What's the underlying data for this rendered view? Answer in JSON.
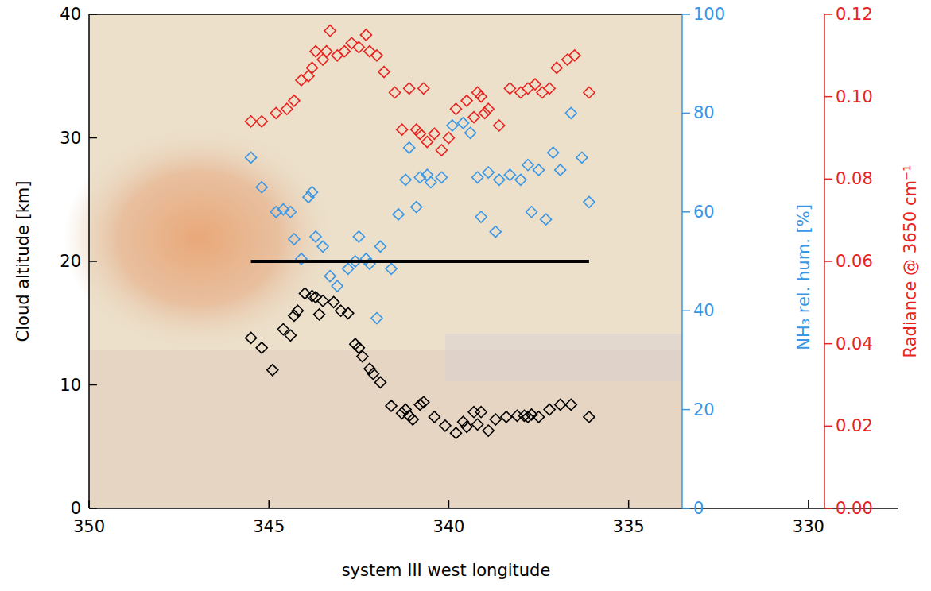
{
  "chart_data": {
    "type": "scatter",
    "xlabel": "system III west longitude",
    "ylabel": "Cloud altitude [km]",
    "y2label": "NH₃ rel. hum. [%]",
    "y3label": "Radiance @ 3650 cm⁻¹",
    "xlim": [
      350,
      327.5
    ],
    "xticks": [
      350,
      345,
      340,
      335,
      330
    ],
    "ylim": [
      0,
      40
    ],
    "yticks": [
      0,
      10,
      20,
      30,
      40
    ],
    "y2lim": [
      0,
      100
    ],
    "y2ticks": [
      0,
      20,
      40,
      60,
      80,
      100
    ],
    "y3lim": [
      0,
      0.12
    ],
    "y3ticks": [
      {
        "value": 0,
        "label": "0.00"
      },
      0.02,
      0.04,
      0.06,
      0.08,
      {
        "value": 0.1,
        "label": "0.10"
      },
      0.12
    ],
    "series": [
      {
        "axis": "y",
        "color": "#000000",
        "marker": "diamond",
        "x": [
          345.5,
          345.2,
          344.9,
          344.6,
          344.4,
          344.3,
          344.2,
          344.0,
          343.8,
          343.7,
          343.6,
          343.5,
          343.2,
          343.0,
          342.8,
          342.6,
          342.5,
          342.4,
          342.2,
          342.1,
          341.9,
          341.6,
          341.3,
          341.2,
          341.1,
          341.0,
          340.8,
          340.7,
          340.4,
          340.1,
          339.8,
          339.6,
          339.5,
          339.3,
          339.2,
          339.1,
          338.9,
          338.7,
          338.4,
          338.1,
          337.9,
          337.8,
          337.7,
          337.5,
          337.2,
          336.9,
          336.6,
          336.1
        ],
        "values": [
          13.8,
          13.0,
          11.2,
          14.5,
          14.0,
          15.6,
          16.0,
          17.4,
          17.2,
          17.1,
          15.7,
          16.8,
          16.7,
          16.0,
          15.8,
          13.3,
          13.0,
          12.3,
          11.3,
          10.9,
          10.2,
          8.3,
          7.7,
          8.0,
          7.5,
          7.2,
          8.4,
          8.6,
          7.4,
          6.7,
          6.1,
          7.0,
          6.6,
          7.8,
          6.8,
          7.8,
          6.3,
          7.2,
          7.4,
          7.5,
          7.5,
          7.4,
          7.6,
          7.4,
          8.0,
          8.4,
          8.4,
          7.4
        ]
      },
      {
        "axis": "y2",
        "color": "#3a97e6",
        "marker": "diamond",
        "x": [
          345.5,
          345.2,
          344.8,
          344.6,
          344.4,
          344.3,
          344.1,
          343.9,
          343.8,
          343.7,
          343.5,
          343.3,
          343.1,
          342.8,
          342.6,
          342.5,
          342.3,
          342.2,
          342.0,
          341.9,
          341.6,
          341.4,
          341.2,
          341.1,
          340.9,
          340.8,
          340.6,
          340.5,
          340.2,
          339.9,
          339.6,
          339.4,
          339.2,
          339.1,
          338.9,
          338.7,
          338.6,
          338.3,
          338.0,
          337.8,
          337.7,
          337.5,
          337.3,
          337.1,
          336.9,
          336.6,
          336.3,
          336.1
        ],
        "values": [
          71,
          65,
          60,
          60.5,
          60,
          54.5,
          50.5,
          63,
          64,
          55,
          53,
          47,
          45,
          48.5,
          50,
          55,
          50.5,
          49.5,
          38.5,
          53,
          48.5,
          59.5,
          66.5,
          73,
          61,
          67,
          67.5,
          66,
          67,
          77.5,
          78,
          76,
          67,
          59,
          68,
          56,
          66.5,
          67.5,
          66.5,
          69.5,
          60,
          68.5,
          58.5,
          72,
          68.5,
          80,
          71,
          62
        ]
      },
      {
        "axis": "y3",
        "color": "#e8221f",
        "marker": "diamond",
        "x": [
          345.5,
          345.2,
          344.8,
          344.5,
          344.3,
          344.1,
          343.9,
          343.8,
          343.7,
          343.5,
          343.4,
          343.3,
          343.1,
          342.9,
          342.7,
          342.5,
          342.3,
          342.2,
          342.0,
          341.8,
          341.5,
          341.3,
          341.1,
          340.9,
          340.8,
          340.7,
          340.6,
          340.4,
          340.2,
          340.0,
          339.8,
          339.5,
          339.3,
          339.2,
          339.1,
          339.0,
          338.9,
          338.6,
          338.3,
          338.0,
          337.8,
          337.6,
          337.4,
          337.2,
          337.0,
          336.7,
          336.5,
          336.1
        ],
        "values": [
          0.094,
          0.094,
          0.096,
          0.097,
          0.099,
          0.104,
          0.105,
          0.107,
          0.111,
          0.109,
          0.111,
          0.116,
          0.11,
          0.111,
          0.113,
          0.112,
          0.115,
          0.111,
          0.11,
          0.106,
          0.101,
          0.092,
          0.102,
          0.092,
          0.091,
          0.102,
          0.089,
          0.091,
          0.087,
          0.09,
          0.097,
          0.099,
          0.095,
          0.101,
          0.1,
          0.096,
          0.097,
          0.093,
          0.102,
          0.101,
          0.102,
          0.103,
          0.101,
          0.102,
          0.107,
          0.109,
          0.11,
          0.101
        ]
      },
      {
        "axis": "y",
        "type": "line",
        "color": "#000000",
        "line_style": "solid",
        "x": [
          345.5,
          336.1
        ],
        "values": [
          20,
          20
        ]
      }
    ]
  }
}
